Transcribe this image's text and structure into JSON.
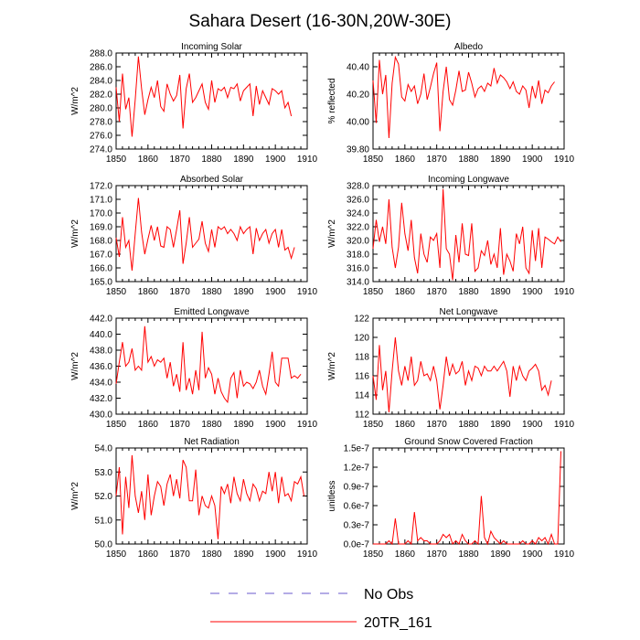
{
  "title": "Sahara Desert (16-30N,20W-30E)",
  "colors": {
    "series": "#ff0000",
    "obs": "#6a5acd",
    "axis": "#000000"
  },
  "legend": [
    {
      "name": "No Obs",
      "style": "dashed",
      "color": "#6a5acd"
    },
    {
      "name": "20TR_161",
      "style": "solid",
      "color": "#ff0000"
    }
  ],
  "chart_data": [
    {
      "type": "line",
      "title": "Incoming Solar",
      "ylabel": "W/m^2",
      "xlabel": "",
      "xlim": [
        1850,
        1910
      ],
      "xticks": [
        1850,
        1860,
        1870,
        1880,
        1890,
        1900,
        1910
      ],
      "ylim": [
        274,
        288
      ],
      "yticks": [
        274,
        276,
        278,
        280,
        282,
        284,
        286,
        288
      ],
      "ytick_labels": [
        "274.0",
        "276.0",
        "278.0",
        "280.0",
        "282.0",
        "284.0",
        "286.0",
        "288.0"
      ],
      "x_start": 1850,
      "x_step": 1,
      "series": [
        {
          "name": "20TR_161",
          "values": [
            283.0,
            278.0,
            285.0,
            279.8,
            281.5,
            275.8,
            281.2,
            287.5,
            282.8,
            279.0,
            281.2,
            283.0,
            281.5,
            284.0,
            280.2,
            279.5,
            283.5,
            282.0,
            281.0,
            281.8,
            284.8,
            277.0,
            282.8,
            285.0,
            280.8,
            281.5,
            282.5,
            283.5,
            280.8,
            279.8,
            284.0,
            280.8,
            282.8,
            282.5,
            283.0,
            281.5,
            283.0,
            282.8,
            283.5,
            281.0,
            282.5,
            283.0,
            283.5,
            278.8,
            283.2,
            280.5,
            282.5,
            281.5,
            280.5,
            282.8,
            282.5,
            282.0,
            282.5,
            280.0,
            280.8,
            278.8
          ]
        }
      ]
    },
    {
      "type": "line",
      "title": "Albedo",
      "ylabel": "% reflected",
      "xlabel": "",
      "xlim": [
        1850,
        1910
      ],
      "xticks": [
        1850,
        1860,
        1870,
        1880,
        1890,
        1900,
        1910
      ],
      "ylim": [
        39.8,
        40.5
      ],
      "yticks": [
        39.8,
        40.0,
        40.2,
        40.4
      ],
      "ytick_labels": [
        "39.80",
        "40.00",
        "40.20",
        "40.40"
      ],
      "x_start": 1850,
      "x_step": 1,
      "series": [
        {
          "name": "20TR_161",
          "values": [
            40.3,
            39.99,
            40.45,
            40.2,
            40.34,
            39.88,
            40.28,
            40.47,
            40.42,
            40.18,
            40.15,
            40.27,
            40.22,
            40.26,
            40.13,
            40.2,
            40.35,
            40.16,
            40.25,
            40.35,
            40.43,
            39.93,
            40.22,
            40.4,
            40.16,
            40.12,
            40.23,
            40.37,
            40.22,
            40.23,
            40.36,
            40.28,
            40.18,
            40.24,
            40.26,
            40.22,
            40.28,
            40.26,
            40.39,
            40.28,
            40.34,
            40.32,
            40.29,
            40.24,
            40.29,
            40.22,
            40.2,
            40.26,
            40.23,
            40.1,
            40.26,
            40.17,
            40.3,
            40.13,
            40.23,
            40.21,
            40.26,
            40.29
          ]
        }
      ]
    },
    {
      "type": "line",
      "title": "Absorbed Solar",
      "ylabel": "W/m^2",
      "xlabel": "",
      "xlim": [
        1850,
        1910
      ],
      "xticks": [
        1850,
        1860,
        1870,
        1880,
        1890,
        1900,
        1910
      ],
      "ylim": [
        165,
        172
      ],
      "yticks": [
        165,
        166,
        167,
        168,
        169,
        170,
        171,
        172
      ],
      "ytick_labels": [
        "165.0",
        "166.0",
        "167.0",
        "168.0",
        "169.0",
        "170.0",
        "171.0",
        "172.0"
      ],
      "x_start": 1850,
      "x_step": 1,
      "series": [
        {
          "name": "20TR_161",
          "values": [
            168.2,
            166.8,
            169.7,
            167.5,
            168.0,
            165.8,
            168.5,
            171.1,
            168.6,
            167.0,
            168.1,
            169.1,
            168.0,
            169.0,
            167.6,
            167.5,
            169.0,
            168.8,
            167.5,
            168.8,
            170.2,
            166.3,
            167.8,
            169.7,
            167.5,
            167.8,
            168.1,
            169.4,
            167.8,
            167.2,
            168.8,
            167.5,
            169.0,
            168.8,
            169.0,
            168.5,
            168.8,
            168.5,
            168.0,
            169.0,
            168.5,
            168.8,
            169.0,
            167.0,
            168.9,
            168.0,
            168.5,
            168.8,
            167.8,
            168.5,
            168.8,
            167.5,
            168.8,
            167.3,
            167.5,
            166.7,
            167.5
          ]
        }
      ]
    },
    {
      "type": "line",
      "title": "Incoming Longwave",
      "ylabel": "W/m^2",
      "xlabel": "",
      "xlim": [
        1850,
        1910
      ],
      "xticks": [
        1850,
        1860,
        1870,
        1880,
        1890,
        1900,
        1910
      ],
      "ylim": [
        314,
        328
      ],
      "yticks": [
        314,
        316,
        318,
        320,
        322,
        324,
        326,
        328
      ],
      "ytick_labels": [
        "314.0",
        "316.0",
        "318.0",
        "320.0",
        "322.0",
        "324.0",
        "326.0",
        "328.0"
      ],
      "x_start": 1850,
      "x_step": 1,
      "series": [
        {
          "name": "20TR_161",
          "values": [
            318.8,
            323.0,
            319.8,
            322.0,
            319.5,
            326.0,
            319.0,
            316.0,
            319.0,
            325.5,
            321.0,
            318.5,
            323.0,
            317.5,
            315.2,
            321.0,
            318.0,
            316.8,
            320.5,
            320.0,
            321.0,
            316.0,
            327.5,
            318.8,
            318.0,
            314.2,
            320.8,
            316.8,
            322.5,
            318.0,
            317.8,
            322.5,
            315.5,
            316.0,
            318.5,
            317.8,
            320.0,
            316.5,
            318.0,
            316.0,
            321.8,
            315.0,
            318.0,
            317.0,
            315.5,
            321.0,
            319.5,
            322.0,
            316.0,
            315.2,
            321.5,
            317.0,
            321.8,
            316.0,
            320.5,
            320.2,
            319.8,
            319.5,
            320.5,
            319.8
          ]
        }
      ]
    },
    {
      "type": "line",
      "title": "Emitted Longwave",
      "ylabel": "W/m^2",
      "xlabel": "",
      "xlim": [
        1850,
        1910
      ],
      "xticks": [
        1850,
        1860,
        1870,
        1880,
        1890,
        1900,
        1910
      ],
      "ylim": [
        430,
        442
      ],
      "yticks": [
        430,
        432,
        434,
        436,
        438,
        440,
        442
      ],
      "ytick_labels": [
        "430.0",
        "432.0",
        "434.0",
        "436.0",
        "438.0",
        "440.0",
        "442.0"
      ],
      "x_start": 1850,
      "x_step": 1,
      "series": [
        {
          "name": "20TR_161",
          "values": [
            433.8,
            436.5,
            439.0,
            436.0,
            436.5,
            438.2,
            435.5,
            436.0,
            435.5,
            441.0,
            436.5,
            437.2,
            436.0,
            436.8,
            436.5,
            437.0,
            434.5,
            436.5,
            433.5,
            435.0,
            432.8,
            439.0,
            433.0,
            434.5,
            432.5,
            435.5,
            433.0,
            440.3,
            434.5,
            435.8,
            435.0,
            432.5,
            434.5,
            432.8,
            432.0,
            431.5,
            434.5,
            435.2,
            432.0,
            435.5,
            433.5,
            434.0,
            433.8,
            433.2,
            434.0,
            435.5,
            433.5,
            432.5,
            435.0,
            437.8,
            434.0,
            433.5,
            437.0,
            437.0,
            437.0,
            434.5,
            434.8,
            434.5,
            435.0
          ]
        }
      ]
    },
    {
      "type": "line",
      "title": "Net Longwave",
      "ylabel": "W/m^2",
      "xlabel": "",
      "xlim": [
        1850,
        1910
      ],
      "xticks": [
        1850,
        1860,
        1870,
        1880,
        1890,
        1900,
        1910
      ],
      "ylim": [
        112,
        122
      ],
      "yticks": [
        112,
        114,
        116,
        118,
        120,
        122
      ],
      "ytick_labels": [
        "112",
        "114",
        "116",
        "118",
        "120",
        "122"
      ],
      "x_start": 1850,
      "x_step": 1,
      "series": [
        {
          "name": "20TR_161",
          "values": [
            116.0,
            113.5,
            119.2,
            114.5,
            116.5,
            112.2,
            116.5,
            120.0,
            116.5,
            115.0,
            117.0,
            115.5,
            118.0,
            115.0,
            115.5,
            117.5,
            116.0,
            116.2,
            115.5,
            117.0,
            115.5,
            112.5,
            115.0,
            118.0,
            116.0,
            117.2,
            116.2,
            116.5,
            117.5,
            115.0,
            116.5,
            115.5,
            117.0,
            116.8,
            116.0,
            117.0,
            116.5,
            116.5,
            117.0,
            116.5,
            117.0,
            117.5,
            116.5,
            113.8,
            117.0,
            115.5,
            117.0,
            116.0,
            115.5,
            116.5,
            116.8,
            117.2,
            116.5,
            114.5,
            115.0,
            114.0,
            115.5
          ]
        }
      ]
    },
    {
      "type": "line",
      "title": "Net Radiation",
      "ylabel": "W/m^2",
      "xlabel": "",
      "xlim": [
        1850,
        1910
      ],
      "xticks": [
        1850,
        1860,
        1870,
        1880,
        1890,
        1900,
        1910
      ],
      "ylim": [
        50,
        54
      ],
      "yticks": [
        50,
        51,
        52,
        53,
        54
      ],
      "ytick_labels": [
        "50.0",
        "51.0",
        "52.0",
        "53.0",
        "54.0"
      ],
      "x_start": 1850,
      "x_step": 1,
      "series": [
        {
          "name": "20TR_161",
          "values": [
            52.0,
            53.2,
            50.4,
            52.8,
            51.5,
            53.7,
            52.0,
            51.3,
            52.2,
            51.0,
            52.9,
            51.2,
            52.0,
            52.6,
            52.4,
            51.6,
            52.5,
            52.9,
            52.0,
            52.7,
            51.9,
            53.5,
            53.2,
            51.8,
            51.8,
            53.1,
            51.2,
            52.0,
            51.6,
            51.5,
            52.0,
            51.6,
            50.2,
            52.4,
            52.1,
            52.5,
            51.7,
            52.8,
            52.1,
            51.8,
            52.7,
            52.1,
            51.8,
            52.5,
            52.3,
            51.8,
            52.2,
            52.1,
            53.0,
            52.2,
            53.0,
            51.7,
            52.8,
            52.0,
            52.1,
            51.8,
            52.6,
            52.5,
            52.8,
            52.0
          ]
        }
      ]
    },
    {
      "type": "line",
      "title": "Ground Snow Covered Fraction",
      "ylabel": "unitless",
      "xlabel": "",
      "xlim": [
        1850,
        1910
      ],
      "xticks": [
        1850,
        1860,
        1870,
        1880,
        1890,
        1900,
        1910
      ],
      "ylim": [
        0,
        1.5e-07
      ],
      "yticks": [
        0,
        3e-08,
        6e-08,
        9e-08,
        1.2e-07,
        1.5e-07
      ],
      "ytick_labels": [
        "0.0e-7",
        "0.3e-7",
        "0.6e-7",
        "0.9e-7",
        "1.2e-7",
        "1.5e-7"
      ],
      "x_start": 1850,
      "x_step": 1,
      "series": [
        {
          "name": "20TR_161",
          "values": [
            0,
            0,
            0,
            0,
            0,
            5e-09,
            0,
            4e-08,
            0,
            0,
            0,
            5e-09,
            0,
            5e-08,
            5e-09,
            1e-08,
            5e-09,
            5e-09,
            0,
            0,
            0,
            5e-09,
            1.5e-08,
            1e-08,
            1.5e-08,
            0,
            5e-09,
            0,
            1.5e-08,
            5e-09,
            0,
            0,
            5e-09,
            0,
            7.5e-08,
            1e-08,
            0,
            2e-08,
            1e-08,
            5e-09,
            0,
            5e-09,
            0,
            0,
            0,
            0,
            0,
            5e-09,
            0,
            0,
            5e-09,
            0,
            1e-08,
            5e-09,
            1e-08,
            0,
            1.5e-08,
            0,
            0,
            1.45e-07
          ]
        }
      ]
    }
  ]
}
